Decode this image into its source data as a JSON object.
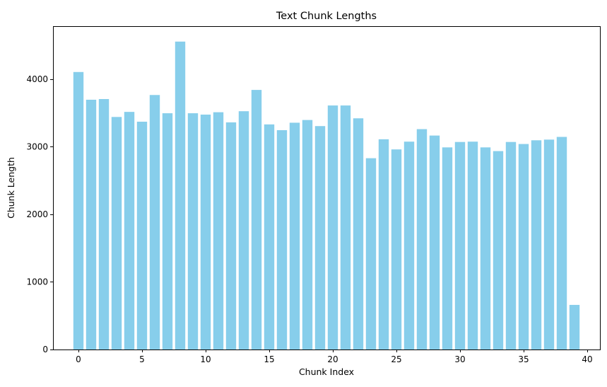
{
  "chart_data": {
    "type": "bar",
    "title": "Text Chunk Lengths",
    "xlabel": "Chunk Index",
    "ylabel": "Chunk Length",
    "x": [
      0,
      1,
      2,
      3,
      4,
      5,
      6,
      7,
      8,
      9,
      10,
      11,
      12,
      13,
      14,
      15,
      16,
      17,
      18,
      19,
      20,
      21,
      22,
      23,
      24,
      25,
      26,
      27,
      28,
      29,
      30,
      31,
      32,
      33,
      34,
      35,
      36,
      37,
      38,
      39
    ],
    "values": [
      4105,
      3695,
      3705,
      3440,
      3515,
      3370,
      3765,
      3495,
      4555,
      3495,
      3475,
      3510,
      3360,
      3525,
      3840,
      3330,
      3245,
      3355,
      3395,
      3305,
      3610,
      3610,
      3420,
      2830,
      3110,
      2960,
      3075,
      3260,
      3165,
      2990,
      3070,
      3075,
      2990,
      2935,
      3070,
      3040,
      3095,
      3105,
      3145,
      660
    ],
    "xlim": [
      -2,
      41
    ],
    "ylim": [
      0,
      4783
    ],
    "xticks": [
      0,
      5,
      10,
      15,
      20,
      25,
      30,
      35,
      40
    ],
    "yticks": [
      0,
      1000,
      2000,
      3000,
      4000
    ],
    "bar_color": "#87ceeb",
    "grid": false,
    "legend": "none"
  }
}
